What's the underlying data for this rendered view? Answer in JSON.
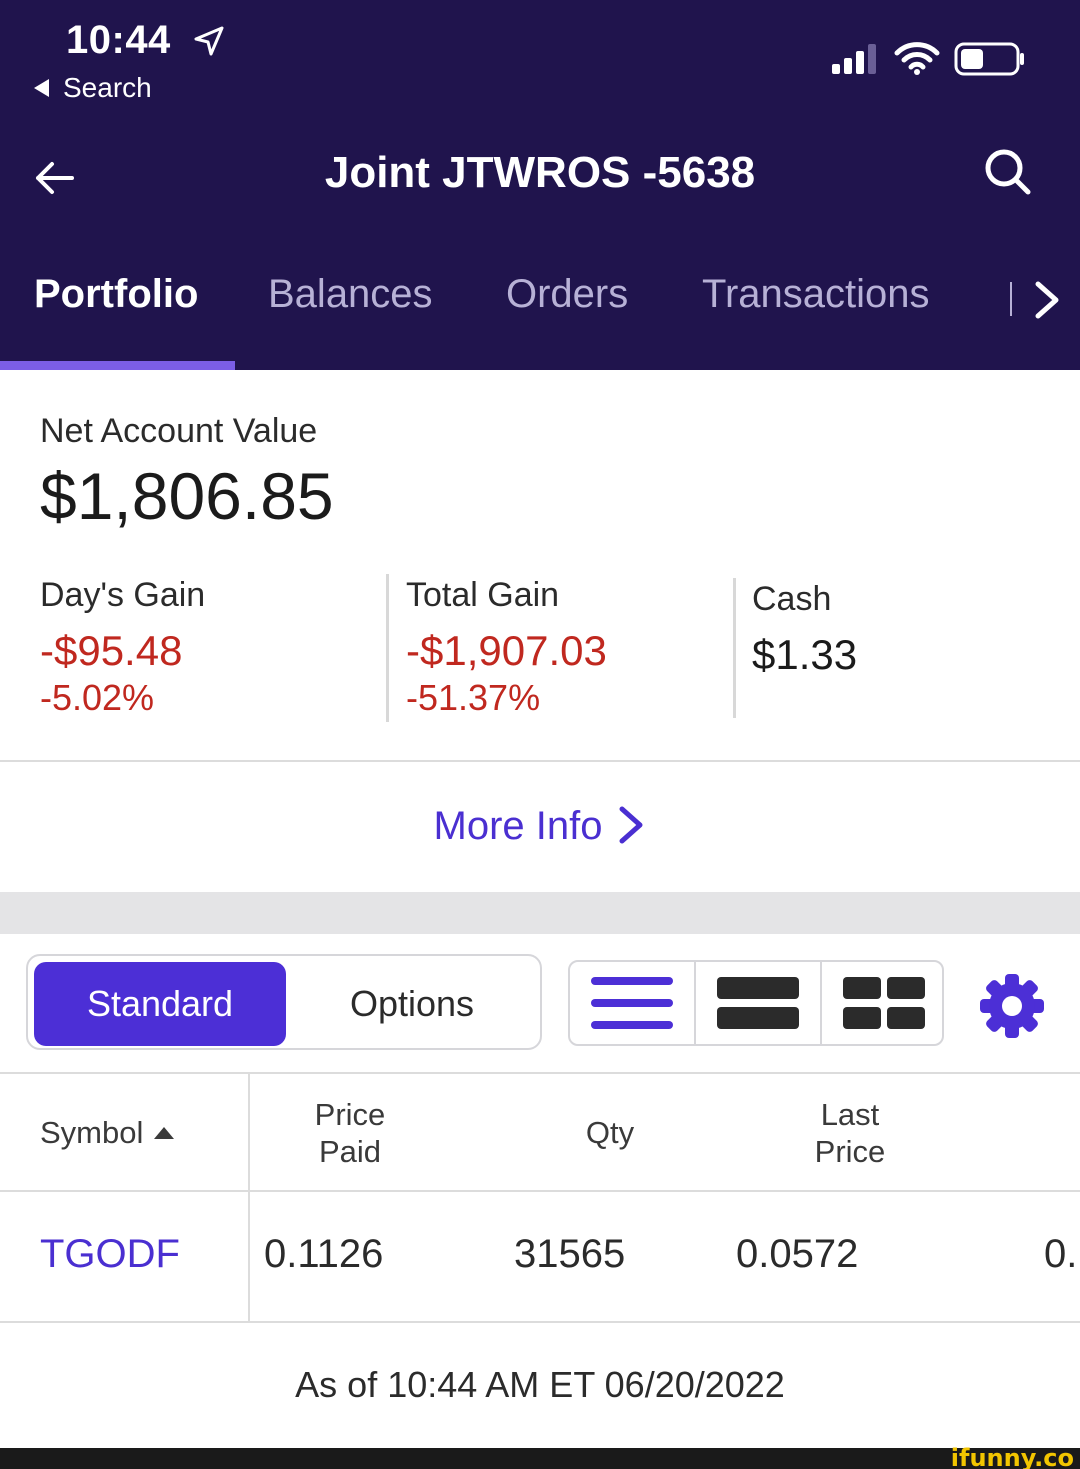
{
  "status_bar": {
    "time": "10:44",
    "back_app": "Search"
  },
  "nav": {
    "title": "Joint JTWROS -5638"
  },
  "tabs": [
    {
      "label": "Portfolio",
      "active": true
    },
    {
      "label": "Balances",
      "active": false
    },
    {
      "label": "Orders",
      "active": false
    },
    {
      "label": "Transactions",
      "active": false
    }
  ],
  "account": {
    "net_label": "Net Account Value",
    "net_value": "$1,806.85",
    "days_gain": {
      "label": "Day's Gain",
      "amount": "-$95.48",
      "percent": "-5.02%"
    },
    "total_gain": {
      "label": "Total Gain",
      "amount": "-$1,907.03",
      "percent": "-51.37%"
    },
    "cash": {
      "label": "Cash",
      "amount": "$1.33"
    }
  },
  "more_info": "More Info",
  "segments": {
    "standard": "Standard",
    "options": "Options",
    "selected": "Standard"
  },
  "table": {
    "headers": {
      "symbol": "Symbol",
      "price_paid_1": "Price",
      "price_paid_2": "Paid",
      "qty": "Qty",
      "last_price_1": "Last",
      "last_price_2": "Price"
    },
    "rows": [
      {
        "symbol": "TGODF",
        "price_paid": "0.1126",
        "qty": "31565",
        "last_price": "0.0572",
        "next": "0."
      }
    ]
  },
  "as_of": "As of 10:44 AM ET 06/20/2022",
  "watermark": "ifunny.co",
  "colors": {
    "header_bg": "#20144d",
    "accent": "#4c2fd6",
    "loss": "#c0281f",
    "tab_indicator": "#7b5ee6"
  },
  "icons": [
    "location-arrow-icon",
    "signal-icon",
    "wifi-icon",
    "battery-icon",
    "back-arrow-icon",
    "search-icon",
    "chevron-right-icon",
    "list-view-icon",
    "row-view-icon",
    "grid-view-icon",
    "gear-icon",
    "sort-up-icon"
  ]
}
